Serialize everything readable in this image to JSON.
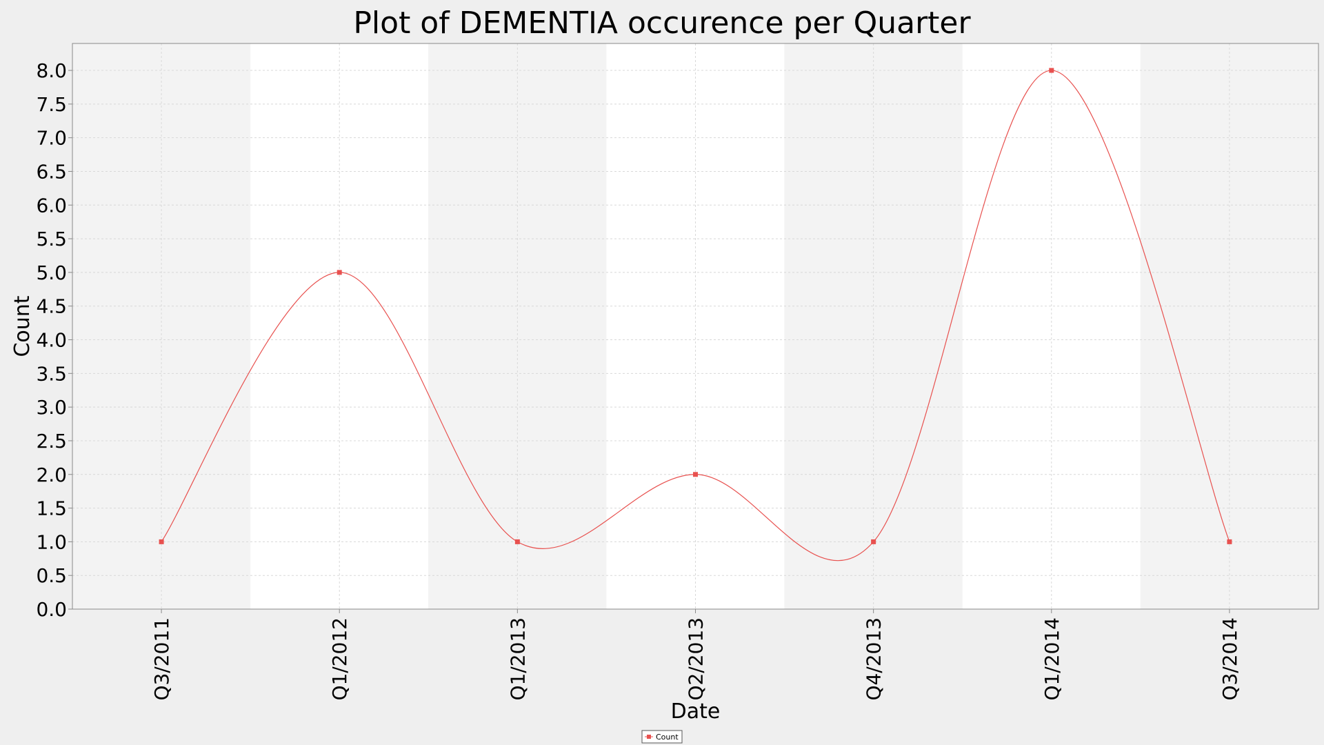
{
  "chart_data": {
    "type": "line",
    "title": "Plot of DEMENTIA occurence per Quarter",
    "xlabel": "Date",
    "ylabel": "Count",
    "categories": [
      "Q3/2011",
      "Q1/2012",
      "Q1/2013",
      "Q2/2013",
      "Q4/2013",
      "Q1/2014",
      "Q3/2014"
    ],
    "series": [
      {
        "name": "Count",
        "color": "#e8514f",
        "values": [
          1,
          5,
          1,
          2,
          1,
          8,
          1
        ]
      }
    ],
    "ylim": [
      0,
      8.4
    ],
    "yticks": [
      "0.0",
      "0.5",
      "1.0",
      "1.5",
      "2.0",
      "2.5",
      "3.0",
      "3.5",
      "4.0",
      "4.5",
      "5.0",
      "5.5",
      "6.0",
      "6.5",
      "7.0",
      "7.5",
      "8.0"
    ],
    "interpolation": "smooth",
    "grid": true,
    "legend_position": "bottom-center",
    "colors": {
      "page_background": "#efefef",
      "band_shaded": "#f3f3f3",
      "band_light": "#ffffff",
      "gridline": "#d8d8d8",
      "axis": "#888888"
    }
  }
}
